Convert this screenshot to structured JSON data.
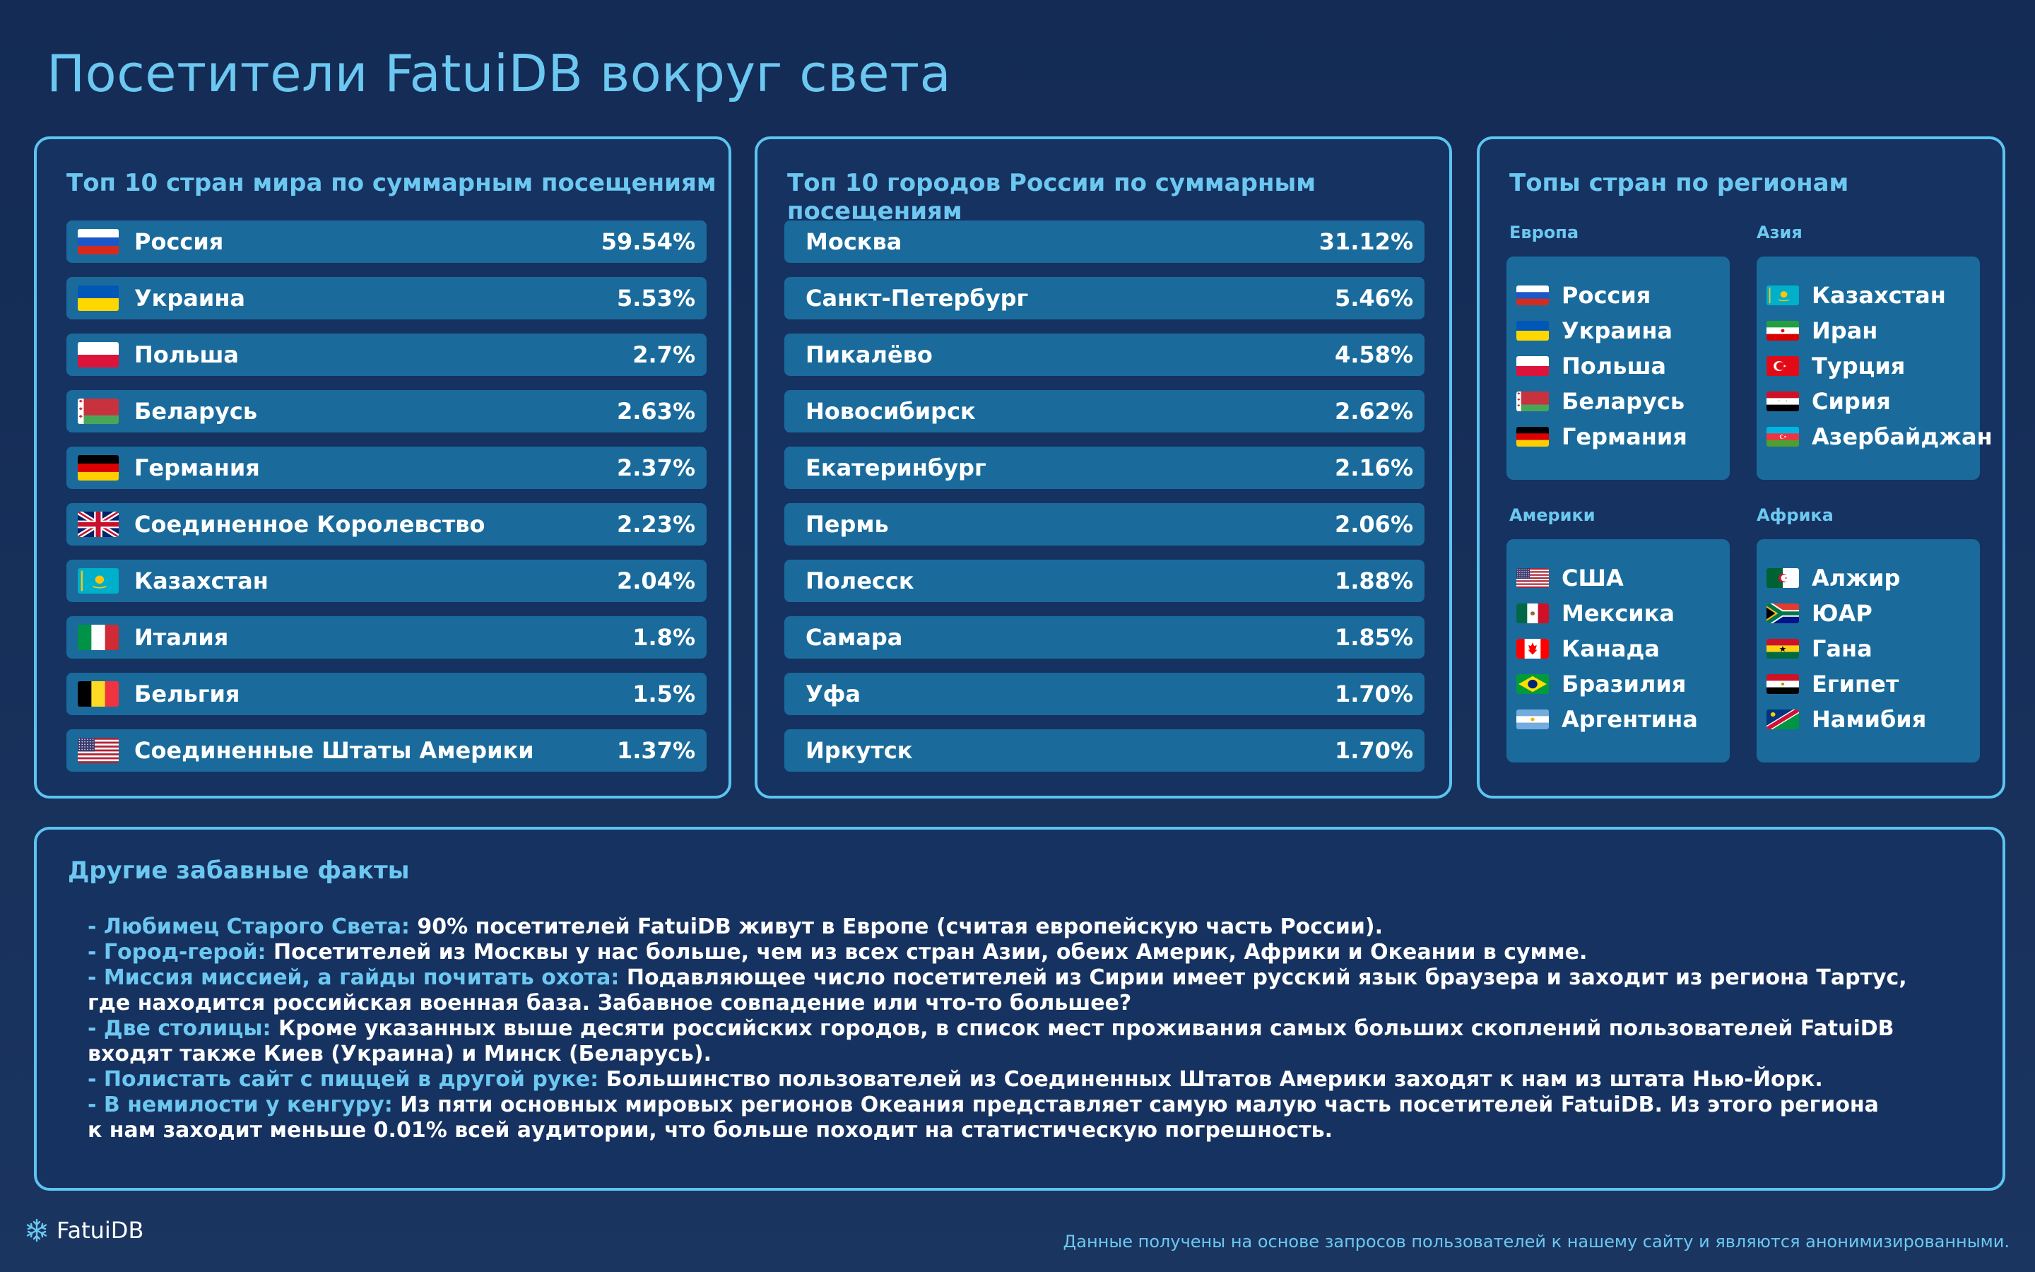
{
  "title": "Посетители FatuiDB вокруг света",
  "countries": {
    "title": "Топ 10 стран мира по суммарным посещениям",
    "items": [
      {
        "flag": "russia-flag",
        "name": "Россия",
        "pct": "59.54%"
      },
      {
        "flag": "ukraine-flag",
        "name": "Украина",
        "pct": "5.53%"
      },
      {
        "flag": "poland-flag",
        "name": "Польша",
        "pct": "2.7%"
      },
      {
        "flag": "belarus-flag",
        "name": "Беларусь",
        "pct": "2.63%"
      },
      {
        "flag": "germany-flag",
        "name": "Германия",
        "pct": "2.37%"
      },
      {
        "flag": "uk-flag",
        "name": "Соединенное Королевство",
        "pct": "2.23%"
      },
      {
        "flag": "kazakhstan-flag",
        "name": "Казахстан",
        "pct": "2.04%"
      },
      {
        "flag": "italy-flag",
        "name": "Италия",
        "pct": "1.8%"
      },
      {
        "flag": "belgium-flag",
        "name": "Бельгия",
        "pct": "1.5%"
      },
      {
        "flag": "usa-flag",
        "name": "Соединенные Штаты Америки",
        "pct": "1.37%"
      }
    ]
  },
  "cities": {
    "title": "Топ 10 городов России по суммарным посещениям",
    "items": [
      {
        "name": "Москва",
        "pct": "31.12%"
      },
      {
        "name": "Санкт-Петербург",
        "pct": "5.46%"
      },
      {
        "name": "Пикалёво",
        "pct": "4.58%"
      },
      {
        "name": "Новосибирск",
        "pct": "2.62%"
      },
      {
        "name": "Екатеринбург",
        "pct": "2.16%"
      },
      {
        "name": "Пермь",
        "pct": "2.06%"
      },
      {
        "name": "Полесск",
        "pct": "1.88%"
      },
      {
        "name": "Самара",
        "pct": "1.85%"
      },
      {
        "name": "Уфа",
        "pct": "1.70%"
      },
      {
        "name": "Иркутск",
        "pct": "1.70%"
      }
    ]
  },
  "regions": {
    "title": "Топы стран по регионам",
    "europe": {
      "label": "Европа",
      "items": [
        {
          "flag": "russia-flag",
          "name": "Россия"
        },
        {
          "flag": "ukraine-flag",
          "name": "Украина"
        },
        {
          "flag": "poland-flag",
          "name": "Польша"
        },
        {
          "flag": "belarus-flag",
          "name": "Беларусь"
        },
        {
          "flag": "germany-flag",
          "name": "Германия"
        }
      ]
    },
    "asia": {
      "label": "Азия",
      "items": [
        {
          "flag": "kazakhstan-flag",
          "name": "Казахстан"
        },
        {
          "flag": "iran-flag",
          "name": "Иран"
        },
        {
          "flag": "turkey-flag",
          "name": "Турция"
        },
        {
          "flag": "syria-flag",
          "name": "Сирия"
        },
        {
          "flag": "azerbaijan-flag",
          "name": "Азербайджан"
        }
      ]
    },
    "americas": {
      "label": "Америки",
      "items": [
        {
          "flag": "usa-flag",
          "name": "США"
        },
        {
          "flag": "mexico-flag",
          "name": "Мексика"
        },
        {
          "flag": "canada-flag",
          "name": "Канада"
        },
        {
          "flag": "brazil-flag",
          "name": "Бразилия"
        },
        {
          "flag": "argentina-flag",
          "name": "Аргентина"
        }
      ]
    },
    "africa": {
      "label": "Африка",
      "items": [
        {
          "flag": "algeria-flag",
          "name": "Алжир"
        },
        {
          "flag": "south-africa-flag",
          "name": "ЮАР"
        },
        {
          "flag": "ghana-flag",
          "name": "Гана"
        },
        {
          "flag": "egypt-flag",
          "name": "Египет"
        },
        {
          "flag": "namibia-flag",
          "name": "Намибия"
        }
      ]
    }
  },
  "facts": {
    "title": "Другие забавные факты",
    "items": [
      {
        "lead": "- Любимец Старого Света:",
        "text": " 90% посетителей FatuiDB живут в Европе (считая европейскую часть России)."
      },
      {
        "lead": "- Город-герой:",
        "text": " Посетителей из Москвы у нас больше, чем из всех стран Азии, обеих Америк, Африки и Океании в сумме."
      },
      {
        "lead": "- Миссия миссией, а гайды почитать охота:",
        "text": " Подавляющее число посетителей из Сирии имеет русский язык браузера и заходит из региона Тартус,"
      },
      {
        "lead": "",
        "text": "где находится российская военная база. Забавное совпадение или что-то большее?"
      },
      {
        "lead": "- Две столицы:",
        "text": " Кроме указанных выше десяти российских городов, в список мест проживания самых больших скоплений пользователей FatuiDB"
      },
      {
        "lead": "",
        "text": "входят также Киев (Украина) и Минск (Беларусь)."
      },
      {
        "lead": "- Полистать сайт с пиццей в другой руке:",
        "text": " Большинство пользователей из Соединенных Штатов Америки заходят к нам из штата Нью-Йорк."
      },
      {
        "lead": "- В немилости у кенгуру:",
        "text": " Из пяти основных мировых регионов Океания представляет самую малую часть посетителей FatuiDB. Из этого региона"
      },
      {
        "lead": "",
        "text": "к нам заходит меньше 0.01% всей аудитории, что больше походит на статистическую погрешность."
      }
    ]
  },
  "footer": {
    "logo_text": "FatuiDB",
    "note": "Данные получены на основе запросов пользователей к нашему сайту и являются анонимизированными."
  },
  "colors": {
    "background": "#132b55",
    "accent": "#6cc8f0",
    "border": "#5cc4f0",
    "row": "#1a6b9c"
  }
}
